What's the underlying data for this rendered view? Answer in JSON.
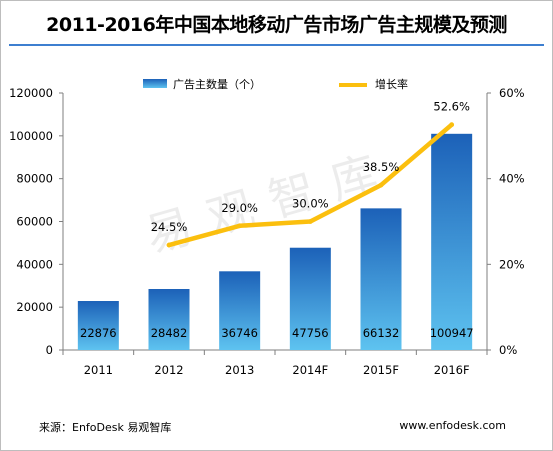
{
  "title": "2011-2016年中国本地移动广告市场广告主规模及预测",
  "source": "来源：EnfoDesk 易观智库",
  "site": "www.enfodesk.com",
  "watermark": "易观智库",
  "colors": {
    "bar_top": "#1c61b8",
    "bar_bottom": "#5ec3f0",
    "line": "#fbbf0e",
    "axis": "#7f7f7f",
    "title_rule": "#3d7fd0"
  },
  "chart_data": {
    "type": "bar",
    "categories": [
      "2011",
      "2012",
      "2013",
      "2014F",
      "2015F",
      "2016F"
    ],
    "series": [
      {
        "name": "广告主数量（个）",
        "type": "bar",
        "axis": "left",
        "values": [
          22876,
          28482,
          36746,
          47756,
          66132,
          100947
        ],
        "labels": [
          "22876",
          "28482",
          "36746",
          "47756",
          "66132",
          "100947"
        ]
      },
      {
        "name": "增长率",
        "type": "line",
        "axis": "right",
        "x": [
          "2012",
          "2013",
          "2014F",
          "2015F",
          "2016F"
        ],
        "values": [
          24.5,
          29.0,
          30.0,
          38.5,
          52.6
        ],
        "labels": [
          "24.5%",
          "29.0%",
          "30.0%",
          "38.5%",
          "52.6%"
        ]
      }
    ],
    "y_left": {
      "ylim": [
        0,
        120000
      ],
      "ticks": [
        0,
        20000,
        40000,
        60000,
        80000,
        100000,
        120000
      ],
      "tick_labels": [
        "0",
        "20000",
        "40000",
        "60000",
        "80000",
        "100000",
        "120000"
      ]
    },
    "y_right": {
      "ylim": [
        0,
        60
      ],
      "ticks": [
        0,
        20,
        40,
        60
      ],
      "tick_labels": [
        "0%",
        "20%",
        "40%",
        "60%"
      ]
    },
    "grid": false,
    "legend_position": "top"
  }
}
